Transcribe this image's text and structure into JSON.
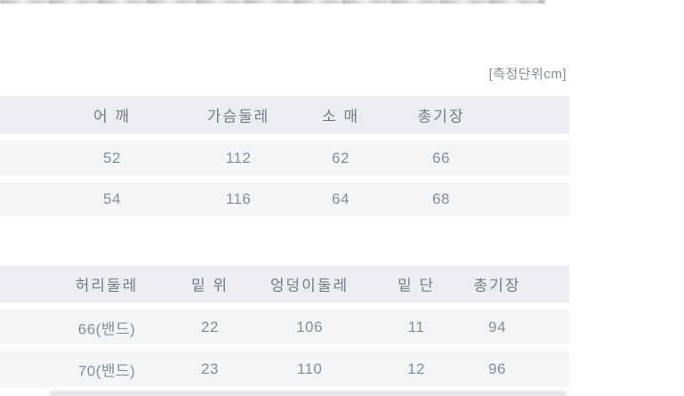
{
  "page": {
    "unit_label": "[측정단위cm]"
  },
  "tables": [
    {
      "columns": [
        "어 깨",
        "가슴둘레",
        "소 매",
        "총기장"
      ],
      "rows": [
        [
          "52",
          "112",
          "62",
          "66"
        ],
        [
          "54",
          "116",
          "64",
          "68"
        ]
      ]
    },
    {
      "columns": [
        "허리둘레",
        "밑 위",
        "엉덩이둘레",
        "밑 단",
        "총기장"
      ],
      "rows": [
        [
          "66(밴드)",
          "22",
          "106",
          "11",
          "94"
        ],
        [
          "70(밴드)",
          "23",
          "110",
          "12",
          "96"
        ]
      ]
    }
  ],
  "colors": {
    "header_band_bg": "#ebedf0",
    "row_band_bg": "#f4f5f7",
    "header_text": "#747c89",
    "value_text": "#878e9a",
    "unit_text": "#868c96"
  }
}
